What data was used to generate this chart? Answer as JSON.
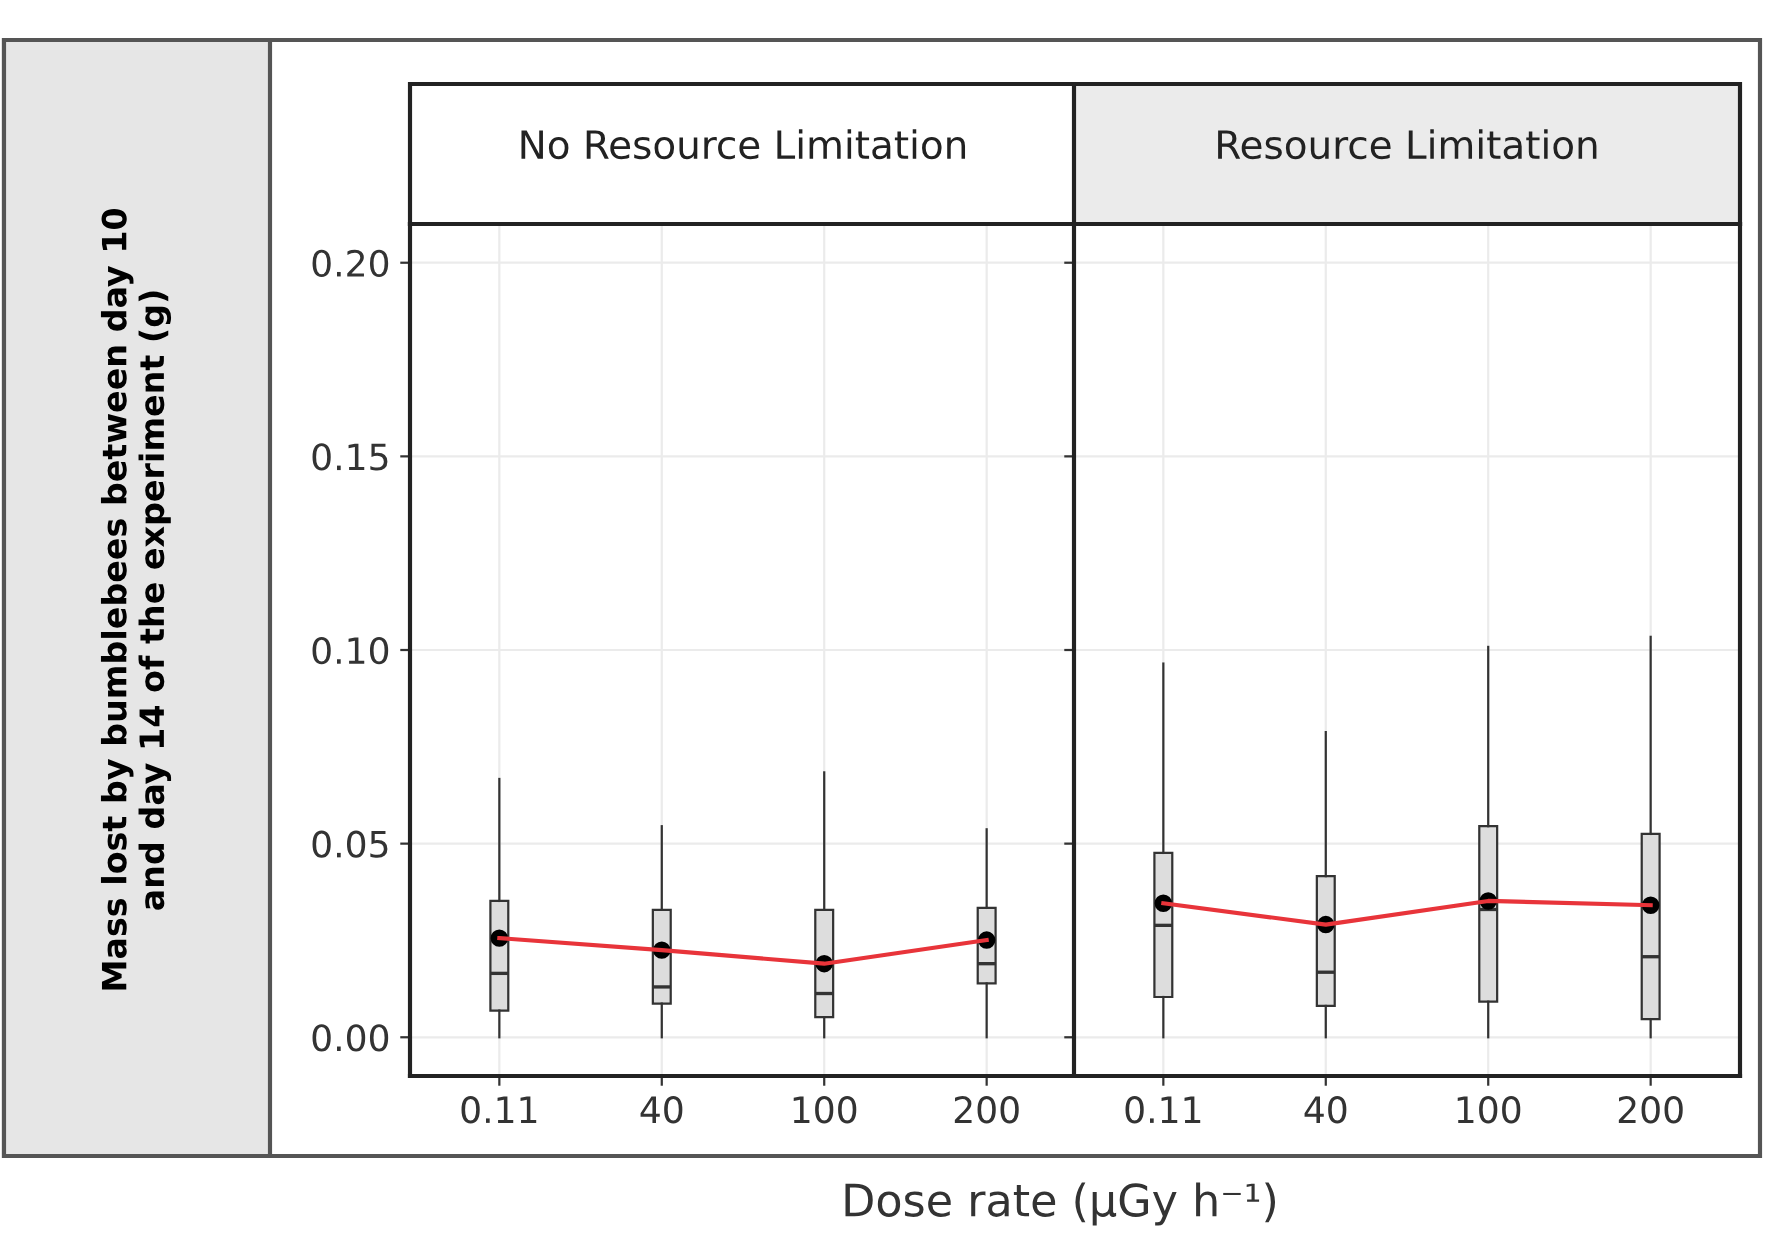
{
  "chart_data": [
    {
      "type": "box",
      "title": "No Resource Limitation",
      "ylabel": "Mass lost by bumblebees between day 10\nand day 14 of the experiment (g)",
      "xlabel": "Dose rate (µGy h⁻¹)",
      "categories": [
        "0.11",
        "40",
        "100",
        "200"
      ],
      "boxes": [
        {
          "low": 0.0,
          "q1": 0.0069,
          "median": 0.0165,
          "q3": 0.0352,
          "high": 0.0667,
          "mean": 0.0256
        },
        {
          "low": 0.0,
          "q1": 0.0087,
          "median": 0.013,
          "q3": 0.0329,
          "high": 0.0545,
          "mean": 0.0225
        },
        {
          "low": 0.0,
          "q1": 0.0052,
          "median": 0.0113,
          "q3": 0.0329,
          "high": 0.0684,
          "mean": 0.019
        },
        {
          "low": 0.0,
          "q1": 0.0139,
          "median": 0.019,
          "q3": 0.0334,
          "high": 0.0537,
          "mean": 0.0251
        }
      ],
      "series": [
        {
          "type": "line",
          "color": "#e8343a",
          "values": [
            0.0256,
            0.0225,
            0.019,
            0.0251
          ]
        }
      ],
      "ylim": [
        -0.01,
        0.21
      ],
      "yticks": [
        {
          "value": 0,
          "label": "0.00"
        },
        0.05,
        {
          "value": 0.1,
          "label": "0.10"
        },
        0.15,
        {
          "value": 0.2,
          "label": "0.20"
        }
      ],
      "grid": true
    },
    {
      "type": "box",
      "title": "Resource Limitation",
      "categories": [
        "0.11",
        "40",
        "100",
        "200"
      ],
      "boxes": [
        {
          "low": 0.0,
          "q1": 0.0104,
          "median": 0.0289,
          "q3": 0.0476,
          "high": 0.0965,
          "mean": 0.0346
        },
        {
          "low": 0.0,
          "q1": 0.0081,
          "median": 0.0168,
          "q3": 0.0416,
          "high": 0.0788,
          "mean": 0.0291
        },
        {
          "low": 0.0,
          "q1": 0.0092,
          "median": 0.033,
          "q3": 0.0545,
          "high": 0.1008,
          "mean": 0.0352
        },
        {
          "low": 0.0,
          "q1": 0.0047,
          "median": 0.0208,
          "q3": 0.0525,
          "high": 0.1034,
          "mean": 0.0341
        }
      ],
      "series": [
        {
          "type": "line",
          "color": "#e8343a",
          "values": [
            0.0346,
            0.0291,
            0.0352,
            0.0341
          ]
        }
      ],
      "ylim": [
        -0.01,
        0.21
      ],
      "yticks": [
        0,
        0.05,
        0.1,
        0.15,
        0.2
      ],
      "grid": true,
      "tick_labels": "x"
    }
  ]
}
